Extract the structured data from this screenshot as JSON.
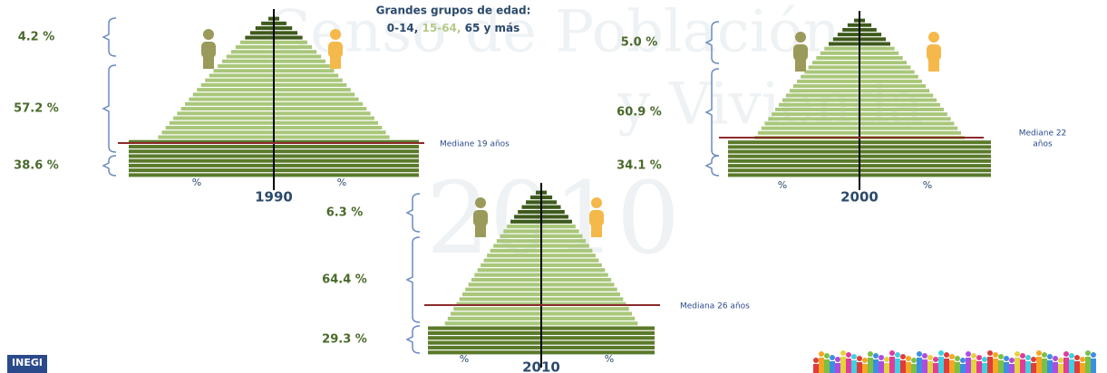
{
  "header": {
    "line1": "Grandes grupos de edad:",
    "line2_a": "0-14,",
    "line2_b": "15-64,",
    "line2_c": "65 y más"
  },
  "watermark": {
    "line1": "Censo de Población",
    "line2": "y Vivienda",
    "line3": "2010"
  },
  "pyramids": [
    {
      "year": "1990",
      "old": "4.2 %",
      "working": "57.2 %",
      "young": "38.6 %",
      "median": [
        "Mediane 19 años"
      ],
      "pct_left": "%",
      "pct_right": "%"
    },
    {
      "year": "2000",
      "old": "5.0 %",
      "working": "60.9 %",
      "young": "34.1 %",
      "median": [
        "Mediane 22",
        "años"
      ],
      "pct_left": "%",
      "pct_right": "%"
    },
    {
      "year": "2010",
      "old": "6.3 %",
      "working": "64.4 %",
      "young": "29.3 %",
      "median": [
        "Mediana 26 años"
      ],
      "pct_left": "%",
      "pct_right": "%"
    }
  ],
  "logo": "INEGI"
}
